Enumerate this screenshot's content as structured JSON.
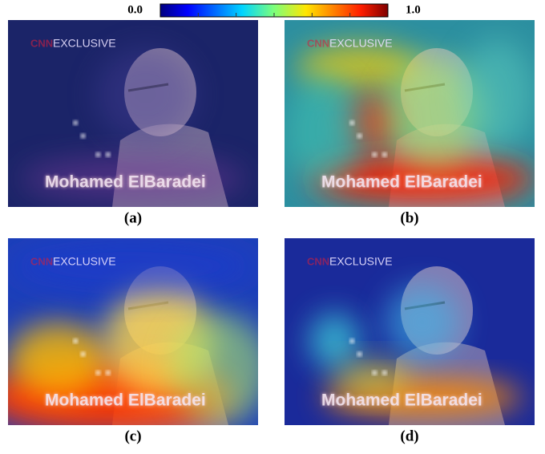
{
  "colorbar": {
    "ticks": [
      {
        "value": 0,
        "label": "0.0"
      },
      {
        "value": 1,
        "label": "1.0"
      }
    ]
  },
  "frame": {
    "logo": "CNN",
    "banner": "EXCLUSIVE",
    "name": "Mohamed ElBaradei"
  },
  "panels": [
    {
      "label": "(a)"
    },
    {
      "label": "(b)"
    },
    {
      "label": "(c)"
    },
    {
      "label": "(d)"
    }
  ]
}
